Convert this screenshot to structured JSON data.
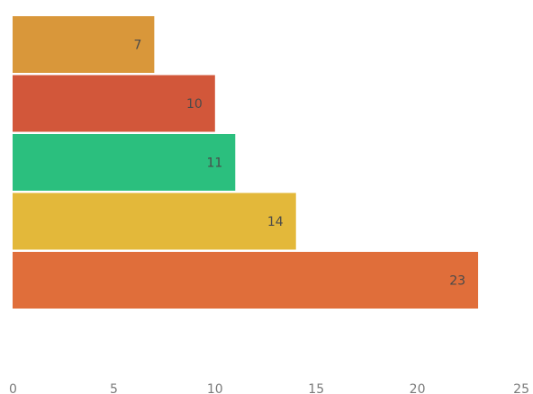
{
  "chart_data": {
    "type": "bar",
    "orientation": "horizontal",
    "values": [
      7,
      10,
      11,
      14,
      23
    ],
    "colors": [
      "#d9973a",
      "#d2573a",
      "#2bbf7e",
      "#e3b83a",
      "#e06e3a"
    ],
    "xlim": [
      0,
      25
    ],
    "xticks": [
      "0",
      "5",
      "10",
      "15",
      "20",
      "25"
    ],
    "data_labels": [
      "7",
      "10",
      "11",
      "14",
      "23"
    ],
    "grid": false,
    "legend": "none"
  }
}
